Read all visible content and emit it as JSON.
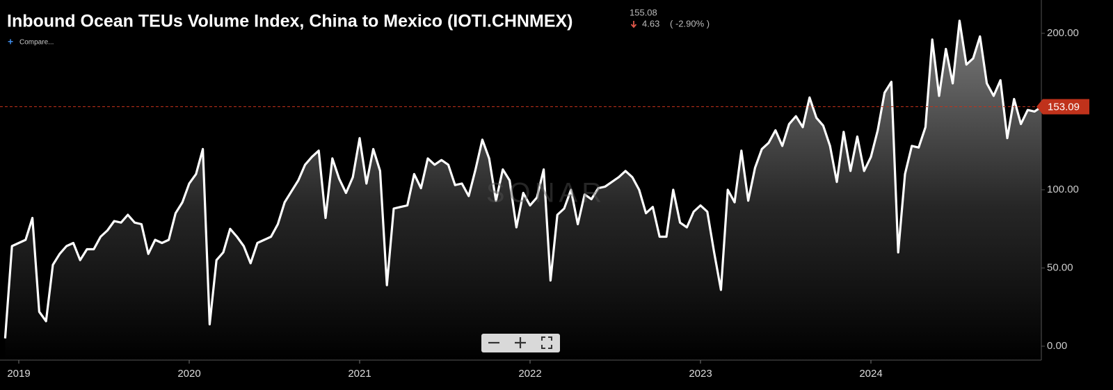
{
  "chart_data": {
    "type": "line",
    "title": "Inbound Ocean TEUs Volume Index, China to Mexico (IOTI.CHNMEX)",
    "header_value": "155.08",
    "header_change": "4.63",
    "header_change_pct": "( -2.90% )",
    "compare_label": "Compare...",
    "watermark": "SONAR",
    "last_value": 153.09,
    "color": "#ffffff",
    "grid": false,
    "ylim": [
      -8.9,
      221.3
    ],
    "yticks": [
      {
        "value": 0,
        "label": "0.00"
      },
      {
        "value": 50,
        "label": "50.00"
      },
      {
        "value": 100,
        "label": "100.00"
      },
      {
        "value": 200,
        "label": "200.00"
      }
    ],
    "categories": [
      null,
      null,
      "2019",
      null,
      null,
      null,
      null,
      null,
      null,
      null,
      null,
      null,
      null,
      null,
      null,
      null,
      null,
      null,
      null,
      null,
      null,
      null,
      null,
      null,
      null,
      null,
      null,
      "2020",
      null,
      null,
      null,
      null,
      null,
      null,
      null,
      null,
      null,
      null,
      null,
      null,
      null,
      null,
      null,
      null,
      null,
      null,
      null,
      null,
      null,
      null,
      null,
      null,
      "2021",
      null,
      null,
      null,
      null,
      null,
      null,
      null,
      null,
      null,
      null,
      null,
      null,
      null,
      null,
      null,
      null,
      null,
      null,
      null,
      null,
      null,
      null,
      null,
      null,
      "2022",
      null,
      null,
      null,
      null,
      null,
      null,
      null,
      null,
      null,
      null,
      null,
      null,
      null,
      null,
      null,
      null,
      null,
      null,
      null,
      null,
      null,
      null,
      null,
      null,
      "2023",
      null,
      null,
      null,
      null,
      null,
      null,
      null,
      null,
      null,
      null,
      null,
      null,
      null,
      null,
      null,
      null,
      null,
      null,
      null,
      null,
      null,
      null,
      null,
      null,
      "2024",
      null,
      null,
      null,
      null,
      null,
      null,
      null,
      null,
      null,
      null,
      null,
      null,
      null,
      null,
      null,
      null,
      null,
      null,
      null,
      null,
      null,
      null,
      null,
      null,
      null
    ],
    "values": [
      5,
      64,
      66,
      68,
      82,
      22,
      16,
      52,
      59,
      64,
      66,
      55,
      62,
      62,
      70,
      74,
      80,
      79,
      84,
      79,
      78,
      59,
      68,
      66,
      68,
      85,
      92,
      104,
      110,
      126,
      14,
      55,
      60,
      75,
      70,
      64,
      53,
      66,
      68,
      70,
      78,
      92,
      99,
      106,
      116,
      121,
      125,
      82,
      120,
      107,
      98,
      108,
      133,
      104,
      126,
      112,
      39,
      88,
      89,
      90,
      110,
      101,
      120,
      116,
      119,
      116,
      103,
      104,
      96,
      113,
      132,
      120,
      93,
      113,
      106,
      76,
      98,
      90,
      95,
      113,
      42,
      84,
      88,
      100,
      78,
      97,
      94,
      101,
      102,
      105,
      108,
      112,
      108,
      100,
      85,
      89,
      70,
      70,
      100,
      79,
      76,
      86,
      90,
      86,
      60,
      36,
      100,
      92,
      125,
      93,
      114,
      126,
      130,
      138,
      128,
      142,
      147,
      140,
      159,
      146,
      141,
      128,
      105,
      137,
      112,
      134,
      112,
      121,
      138,
      162,
      169,
      60,
      110,
      128,
      127,
      140,
      196,
      160,
      190,
      168,
      208,
      180,
      184,
      198,
      168,
      160,
      170,
      133,
      158,
      142,
      151,
      150,
      153
    ]
  }
}
